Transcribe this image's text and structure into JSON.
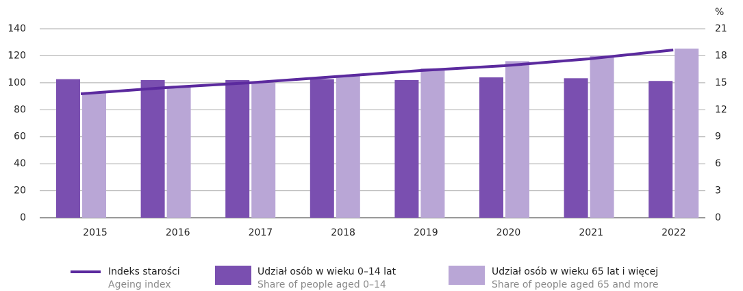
{
  "chart_data": {
    "type": "bar_line",
    "categories": [
      "2015",
      "2016",
      "2017",
      "2018",
      "2019",
      "2020",
      "2021",
      "2022"
    ],
    "ylim": [
      0,
      140
    ],
    "yticks": [
      0,
      20,
      40,
      60,
      80,
      100,
      120,
      140
    ],
    "y2lim": [
      0,
      21
    ],
    "y2ticks": [
      0,
      3,
      6,
      9,
      12,
      15,
      18,
      21
    ],
    "y2label": "%",
    "grid": true,
    "series": [
      {
        "name": "Indeks starości",
        "name_en": "Ageing index",
        "type": "line",
        "color": "#5b2a9e",
        "values": [
          91.8,
          96.4,
          100,
          104.5,
          109,
          112.6,
          117.7,
          124.3
        ]
      },
      {
        "name": "Udział osób w wieku 0–14 lat",
        "name_en": "Share of people aged 0–14",
        "type": "bar",
        "axis": "y2",
        "color": "#7a4fb0",
        "values": [
          15.4,
          15.3,
          15.3,
          15.4,
          15.3,
          15.6,
          15.5,
          15.2
        ]
      },
      {
        "name": "Udział osób w wieku 65 lat i więcej",
        "name_en": "Share of people aged 65 and more",
        "type": "bar",
        "axis": "y2",
        "color": "#b9a6d6",
        "values": [
          13.9,
          14.5,
          15.0,
          15.8,
          16.6,
          17.4,
          18.0,
          18.8
        ]
      }
    ]
  }
}
